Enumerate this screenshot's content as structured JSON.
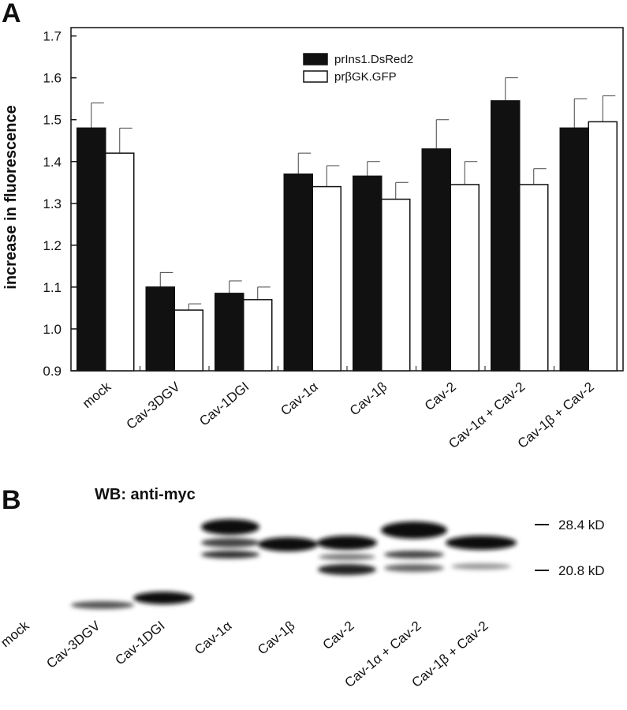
{
  "chart_data": {
    "type": "bar",
    "panel_label": "A",
    "ylabel": "increase in fluorescence",
    "categories": [
      "mock",
      "Cav-3DGV",
      "Cav-1DGI",
      "Cav-1α",
      "Cav-1β",
      "Cav-2",
      "Cav-1α + Cav-2",
      "Cav-1β + Cav-2"
    ],
    "series": [
      {
        "name": "prIns1.DsRed2",
        "color": "#111111",
        "values": [
          1.48,
          1.1,
          1.085,
          1.37,
          1.365,
          1.43,
          1.545,
          1.48
        ],
        "errors": [
          0.06,
          0.035,
          0.03,
          0.05,
          0.035,
          0.07,
          0.055,
          0.07
        ]
      },
      {
        "name": "prβGK.GFP",
        "color": "#ffffff",
        "values": [
          1.42,
          1.045,
          1.07,
          1.34,
          1.31,
          1.345,
          1.345,
          1.495
        ],
        "errors": [
          0.06,
          0.015,
          0.03,
          0.05,
          0.04,
          0.055,
          0.038,
          0.062
        ]
      }
    ],
    "ylim": [
      0.9,
      1.72
    ],
    "yticks": [
      0.9,
      {
        "value": 1,
        "label": "1.0"
      },
      1.1,
      1.2,
      1.3,
      1.4,
      1.5,
      1.6,
      1.7
    ],
    "grid": false
  },
  "blot": {
    "panel_label": "B",
    "title": "WB: anti-myc",
    "markers": [
      "28.4 kD",
      "20.8 kD"
    ],
    "lanes": [
      "mock",
      "Cav-3DGV",
      "Cav-1DGI",
      "Cav-1α",
      "Cav-1β",
      "Cav-2",
      "Cav-1α + Cav-2",
      "Cav-1β + Cav-2"
    ]
  }
}
